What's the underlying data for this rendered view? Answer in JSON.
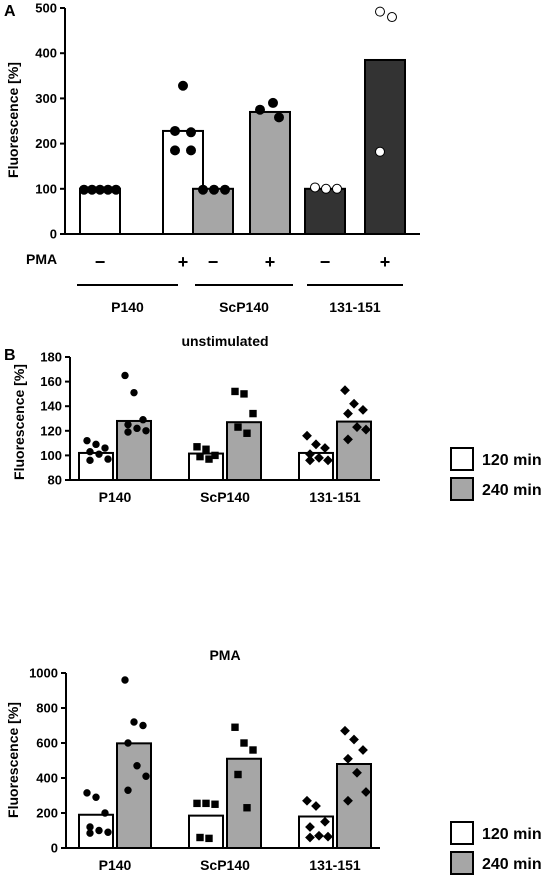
{
  "chart_data": [
    {
      "type": "bar",
      "panel_label": "A",
      "title": "",
      "ylabel": "Fluorescence [%]",
      "ylim": [
        0,
        500
      ],
      "yticks": [
        0,
        100,
        200,
        300,
        400,
        500
      ],
      "row_label": "PMA",
      "signs": [
        "−",
        "+",
        "−",
        "+",
        "−",
        "+"
      ],
      "groups": [
        "P140",
        "ScP140",
        "131-151"
      ],
      "bars": [
        {
          "group": "P140",
          "pma": "−",
          "value": 100,
          "color": "#ffffff",
          "marker_color": "#000000",
          "points": [
            98,
            98,
            98,
            98,
            98
          ]
        },
        {
          "group": "P140",
          "pma": "+",
          "value": 228,
          "color": "#ffffff",
          "marker_color": "#000000",
          "points": [
            328,
            228,
            225,
            185,
            185
          ]
        },
        {
          "group": "ScP140",
          "pma": "−",
          "value": 100,
          "color": "#a6a6a6",
          "marker_color": "#000000",
          "points": [
            98,
            98,
            98
          ]
        },
        {
          "group": "ScP140",
          "pma": "+",
          "value": 270,
          "color": "#a6a6a6",
          "marker_color": "#000000",
          "points": [
            290,
            275,
            258
          ]
        },
        {
          "group": "131-151",
          "pma": "−",
          "value": 100,
          "color": "#333333",
          "marker_color": "#ffffff",
          "points": [
            103,
            100,
            100
          ]
        },
        {
          "group": "131-151",
          "pma": "+",
          "value": 385,
          "color": "#333333",
          "marker_color": "#ffffff",
          "points": [
            492,
            480,
            182
          ]
        }
      ]
    },
    {
      "type": "bar",
      "panel_label": "B",
      "title": "unstimulated",
      "ylabel": "Fluorescence [%]",
      "ylim": [
        80,
        180
      ],
      "yticks": [
        80,
        100,
        120,
        140,
        160,
        180
      ],
      "categories": [
        "P140",
        "ScP140",
        "131-151"
      ],
      "series": [
        {
          "name": "120 min",
          "color": "#ffffff",
          "values": [
            102,
            101.5,
            102
          ],
          "points": [
            [
              112,
              109,
              106,
              103,
              101,
              97,
              96
            ],
            [
              107,
              105,
              100,
              99,
              97
            ],
            [
              116,
              109,
              106,
              101,
              98,
              96,
              96
            ]
          ]
        },
        {
          "name": "240 min",
          "color": "#a6a6a6",
          "values": [
            128,
            127,
            127.5
          ],
          "points": [
            [
              165,
              151,
              129,
              125,
              122,
              120,
              119
            ],
            [
              152,
              150,
              134,
              123,
              118
            ],
            [
              153,
              142,
              137,
              134,
              123,
              121,
              113
            ]
          ]
        }
      ],
      "marker_shapes": [
        "circle",
        "square",
        "diamond"
      ],
      "legend": [
        "120 min",
        "240 min"
      ]
    },
    {
      "type": "bar",
      "title": "PMA",
      "ylabel": "Fluorescence [%]",
      "ylim": [
        0,
        1000
      ],
      "yticks": [
        0,
        200,
        400,
        600,
        800,
        1000
      ],
      "categories": [
        "P140",
        "ScP140",
        "131-151"
      ],
      "series": [
        {
          "name": "120 min",
          "color": "#ffffff",
          "values": [
            190,
            185,
            180
          ],
          "points": [
            [
              315,
              290,
              200,
              120,
              100,
              90,
              85
            ],
            [
              255,
              255,
              250,
              60,
              55
            ],
            [
              270,
              240,
              150,
              120,
              70,
              65,
              60
            ]
          ]
        },
        {
          "name": "240 min",
          "color": "#a6a6a6",
          "values": [
            598,
            510,
            480
          ],
          "points": [
            [
              960,
              720,
              700,
              600,
              470,
              410,
              330
            ],
            [
              690,
              600,
              560,
              420,
              230
            ],
            [
              670,
              620,
              560,
              510,
              430,
              320,
              270
            ]
          ]
        }
      ],
      "marker_shapes": [
        "circle",
        "square",
        "diamond"
      ],
      "legend": [
        "120 min",
        "240 min"
      ]
    }
  ]
}
